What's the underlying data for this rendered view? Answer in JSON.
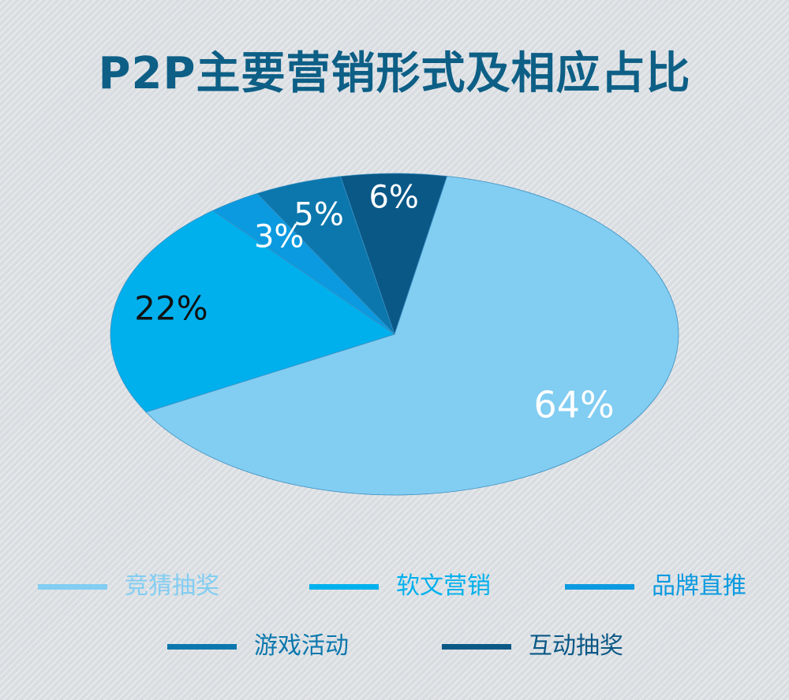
{
  "title": "P2P主要营销形式及相应占比",
  "chart_data": {
    "type": "pie",
    "title": "P2P主要营销形式及相应占比",
    "categories": [
      "竞猜抽奖",
      "软文营销",
      "品牌直推",
      "游戏活动",
      "互动抽奖"
    ],
    "values": [
      64,
      22,
      3,
      5,
      6
    ],
    "data_labels": [
      "64%",
      "22%",
      "3%",
      "5%",
      "6%"
    ],
    "colors": [
      "#82cdf2",
      "#00b0ed",
      "#0b9ae0",
      "#0b77ad",
      "#0a5886"
    ],
    "label_colors": [
      "#ffffff",
      "#111111",
      "#ffffff",
      "#ffffff",
      "#ffffff"
    ],
    "legend_placement": "bottom"
  },
  "legend": {
    "items": [
      {
        "label": "竞猜抽奖",
        "color": "#82cdf2"
      },
      {
        "label": "软文营销",
        "color": "#00b0ed"
      },
      {
        "label": "品牌直推",
        "color": "#0b9ae0"
      },
      {
        "label": "游戏活动",
        "color": "#0b77ad"
      },
      {
        "label": "互动抽奖",
        "color": "#0a5886"
      }
    ]
  }
}
